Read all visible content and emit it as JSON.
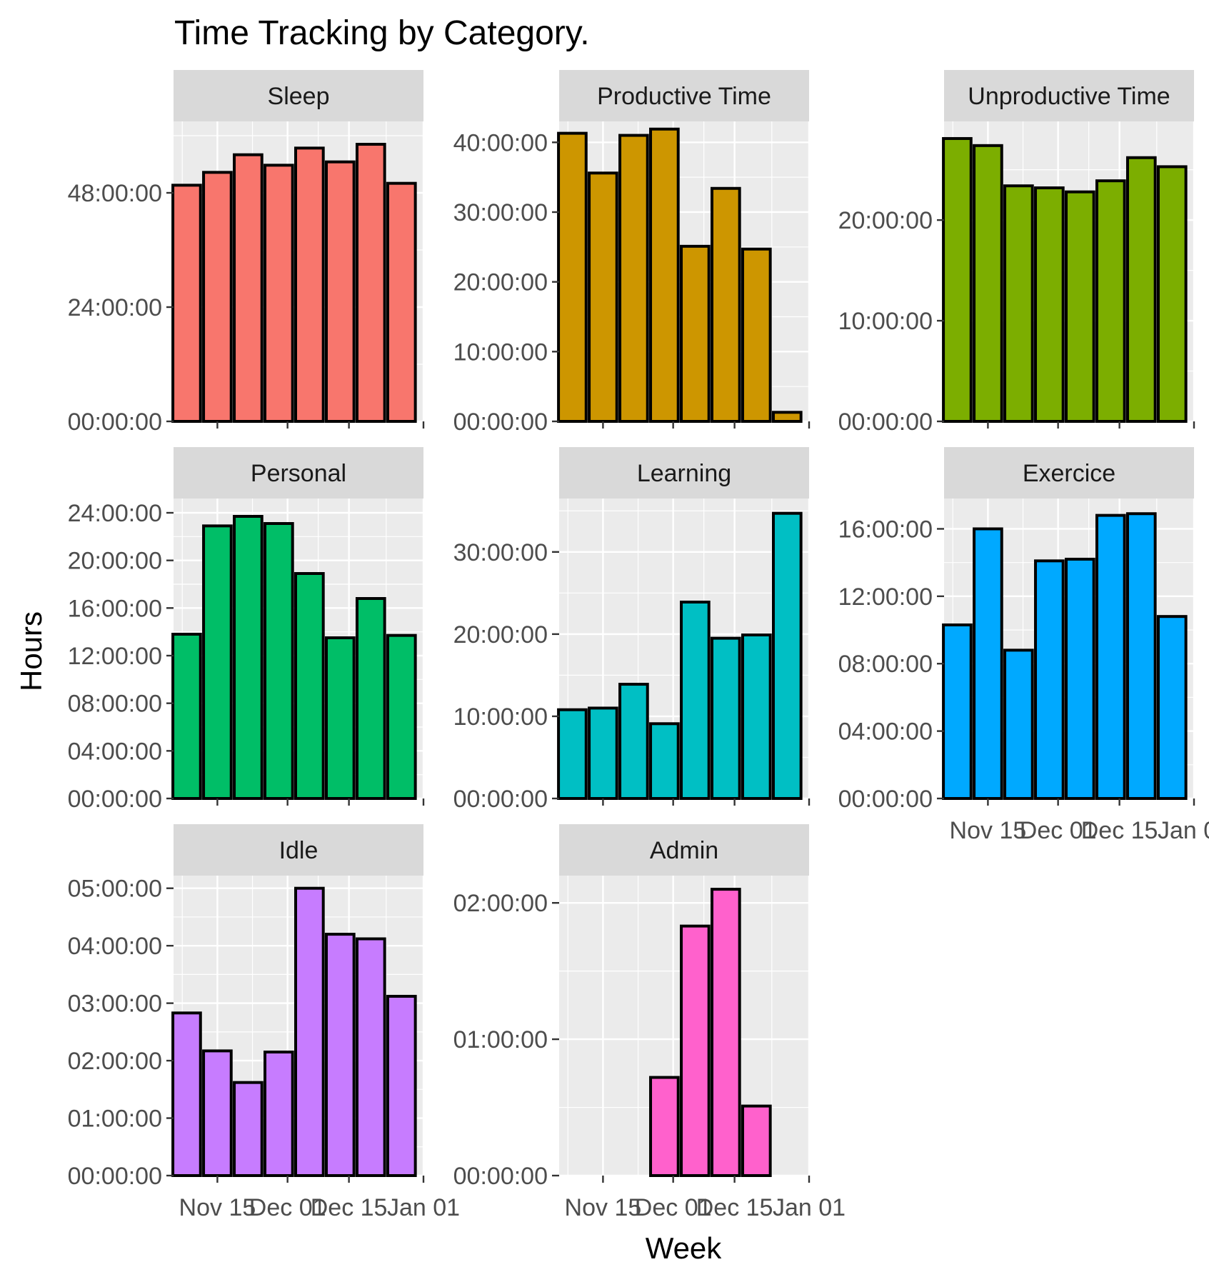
{
  "chart_data": {
    "type": "bar",
    "title": "Time Tracking by Category.",
    "xlabel": "Week",
    "ylabel": "Hours",
    "x_tick_labels": [
      "Nov 15",
      "Dec 01",
      "Dec 15",
      "Jan 01"
    ],
    "x_tick_dates": [
      "2019-11-15",
      "2019-12-01",
      "2019-12-15",
      "2020-01-01"
    ],
    "x_weeks": [
      "2019-11-08",
      "2019-11-15",
      "2019-11-22",
      "2019-11-29",
      "2019-12-06",
      "2019-12-13",
      "2019-12-20",
      "2019-12-27"
    ],
    "xlim": [
      "2019-11-05",
      "2020-01-01"
    ],
    "grid": true,
    "legend": "none",
    "bar_outline": "#000000",
    "panels": [
      {
        "name": "Sleep",
        "color": "#F8766D",
        "ylim": [
          0,
          63
        ],
        "y_tick_labels": [
          "00:00:00",
          "24:00:00",
          "48:00:00"
        ],
        "y_tick_hours": [
          0,
          24,
          48
        ],
        "values_hours": [
          49.6,
          52.3,
          56.0,
          53.8,
          57.4,
          54.5,
          58.2,
          50.0
        ]
      },
      {
        "name": "Productive Time",
        "color": "#CD9600",
        "ylim": [
          0,
          43
        ],
        "y_tick_labels": [
          "00:00:00",
          "10:00:00",
          "20:00:00",
          "30:00:00",
          "40:00:00"
        ],
        "y_tick_hours": [
          0,
          10,
          20,
          30,
          40
        ],
        "values_hours": [
          41.3,
          35.6,
          41.0,
          41.9,
          25.1,
          33.4,
          24.7,
          1.3
        ]
      },
      {
        "name": "Unproductive Time",
        "color": "#7CAE00",
        "ylim": [
          0,
          29.8
        ],
        "y_tick_labels": [
          "00:00:00",
          "10:00:00",
          "20:00:00"
        ],
        "y_tick_hours": [
          0,
          10,
          20
        ],
        "values_hours": [
          28.1,
          27.4,
          23.4,
          23.2,
          22.8,
          23.9,
          26.2,
          25.3
        ]
      },
      {
        "name": "Personal",
        "color": "#00BE67",
        "ylim": [
          0,
          25.2
        ],
        "y_tick_labels": [
          "00:00:00",
          "04:00:00",
          "08:00:00",
          "12:00:00",
          "16:00:00",
          "20:00:00",
          "24:00:00"
        ],
        "y_tick_hours": [
          0,
          4,
          8,
          12,
          16,
          20,
          24
        ],
        "values_hours": [
          13.8,
          22.9,
          23.7,
          23.1,
          18.9,
          13.5,
          16.8,
          13.7
        ]
      },
      {
        "name": "Learning",
        "color": "#00BFC4",
        "ylim": [
          0,
          36.5
        ],
        "y_tick_labels": [
          "00:00:00",
          "10:00:00",
          "20:00:00",
          "30:00:00"
        ],
        "y_tick_hours": [
          0,
          10,
          20,
          30
        ],
        "values_hours": [
          10.8,
          11.0,
          13.9,
          9.1,
          23.9,
          19.5,
          19.9,
          34.7
        ]
      },
      {
        "name": "Exercice",
        "color": "#00A9FF",
        "ylim": [
          0,
          17.8
        ],
        "y_tick_labels": [
          "00:00:00",
          "04:00:00",
          "08:00:00",
          "12:00:00",
          "16:00:00"
        ],
        "y_tick_hours": [
          0,
          4,
          8,
          12,
          16
        ],
        "values_hours": [
          10.3,
          16.0,
          8.8,
          14.1,
          14.2,
          16.8,
          16.9,
          10.8
        ]
      },
      {
        "name": "Idle",
        "color": "#C77CFF",
        "ylim": [
          0,
          5.22
        ],
        "y_tick_labels": [
          "00:00:00",
          "01:00:00",
          "02:00:00",
          "03:00:00",
          "04:00:00",
          "05:00:00"
        ],
        "y_tick_hours": [
          0,
          1,
          2,
          3,
          4,
          5
        ],
        "values_hours": [
          2.83,
          2.17,
          1.62,
          2.15,
          5.0,
          4.2,
          4.12,
          3.12
        ]
      },
      {
        "name": "Admin",
        "color": "#FF61CC",
        "ylim": [
          0,
          2.2
        ],
        "y_tick_labels": [
          "00:00:00",
          "01:00:00",
          "02:00:00"
        ],
        "y_tick_hours": [
          0,
          1,
          2
        ],
        "values_hours": [
          null,
          null,
          null,
          0.72,
          1.83,
          2.1,
          0.51,
          null
        ]
      }
    ]
  }
}
